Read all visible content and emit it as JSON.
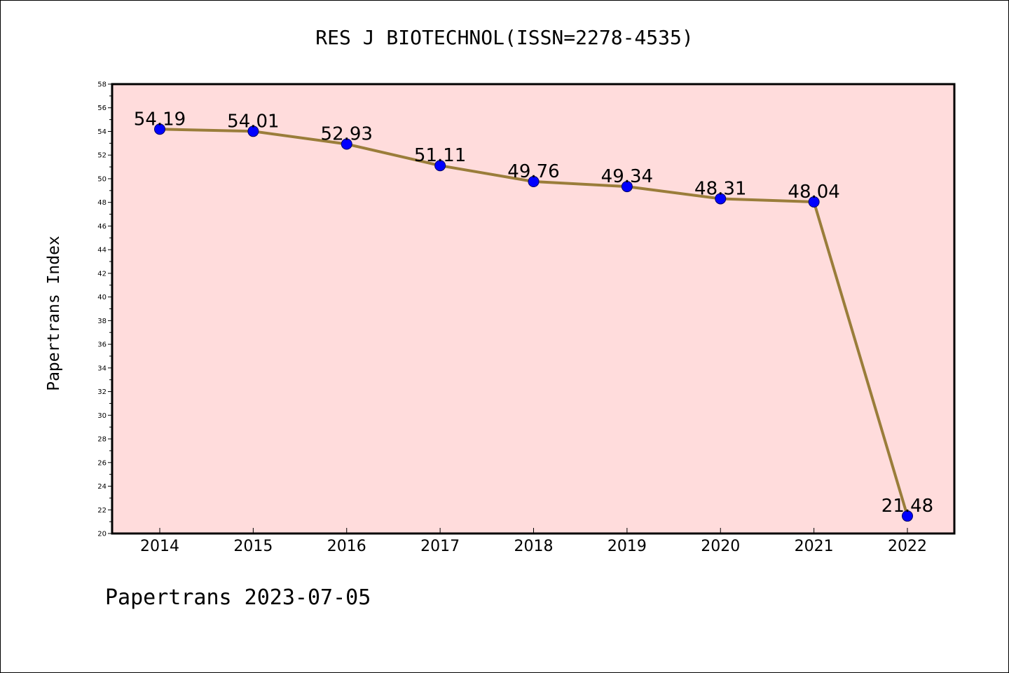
{
  "chart_data": {
    "type": "line",
    "title": "RES J BIOTECHNOL(ISSN=2278-4535)",
    "xlabel": "",
    "ylabel": "Papertrans Index",
    "categories": [
      "2014",
      "2015",
      "2016",
      "2017",
      "2018",
      "2019",
      "2020",
      "2021",
      "2022"
    ],
    "series": [
      {
        "values": [
          54.19,
          54.01,
          52.93,
          51.11,
          49.76,
          49.34,
          48.31,
          48.04,
          21.48
        ],
        "data_labels": [
          "54.19",
          "54.01",
          "52.93",
          "51.11",
          "49.76",
          "49.34",
          "48.31",
          "48.04",
          "21.48"
        ],
        "line_color": "#9a7d3a",
        "marker_color": "#0000ff"
      }
    ],
    "ylim": [
      20,
      58
    ],
    "yticks": [
      "20",
      "22",
      "24",
      "26",
      "28",
      "30",
      "32",
      "34",
      "36",
      "38",
      "40",
      "42",
      "44",
      "46",
      "48",
      "50",
      "52",
      "54",
      "56",
      "58"
    ],
    "plot_background": "#ffdcdc",
    "grid": false,
    "legend": "none"
  },
  "footer": "Papertrans 2023-07-05"
}
